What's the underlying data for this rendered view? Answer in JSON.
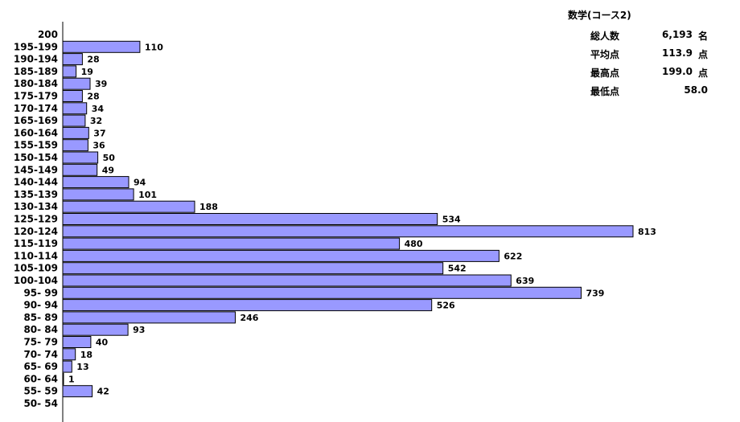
{
  "chart_data": {
    "type": "bar",
    "orientation": "horizontal",
    "categories": [
      "200",
      "195-199",
      "190-194",
      "185-189",
      "180-184",
      "175-179",
      "170-174",
      "165-169",
      "160-164",
      "155-159",
      "150-154",
      "145-149",
      "140-144",
      "135-139",
      "130-134",
      "125-129",
      "120-124",
      "115-119",
      "110-114",
      "105-109",
      "100-104",
      "95- 99",
      "90- 94",
      "85- 89",
      "80- 84",
      "75- 79",
      "70- 74",
      "65- 69",
      "60- 64",
      "55- 59",
      "50- 54"
    ],
    "values": [
      null,
      110,
      28,
      19,
      39,
      28,
      34,
      32,
      37,
      36,
      50,
      49,
      94,
      101,
      188,
      534,
      813,
      480,
      622,
      542,
      639,
      739,
      526,
      246,
      93,
      40,
      18,
      13,
      1,
      42,
      null
    ],
    "bar_color": "#9999ff",
    "bar_edge_color": "#000000",
    "xlim": [
      0,
      813
    ],
    "grid": false,
    "legend": "none"
  },
  "stats": {
    "title": "数学(コース2)",
    "rows": [
      {
        "label": "総人数",
        "value": "6,193",
        "unit": "名"
      },
      {
        "label": "平均点",
        "value": "113.9",
        "unit": "点"
      },
      {
        "label": "最高点",
        "value": "199.0",
        "unit": "点"
      },
      {
        "label": "最低点",
        "value": "58.0",
        "unit": ""
      }
    ]
  }
}
